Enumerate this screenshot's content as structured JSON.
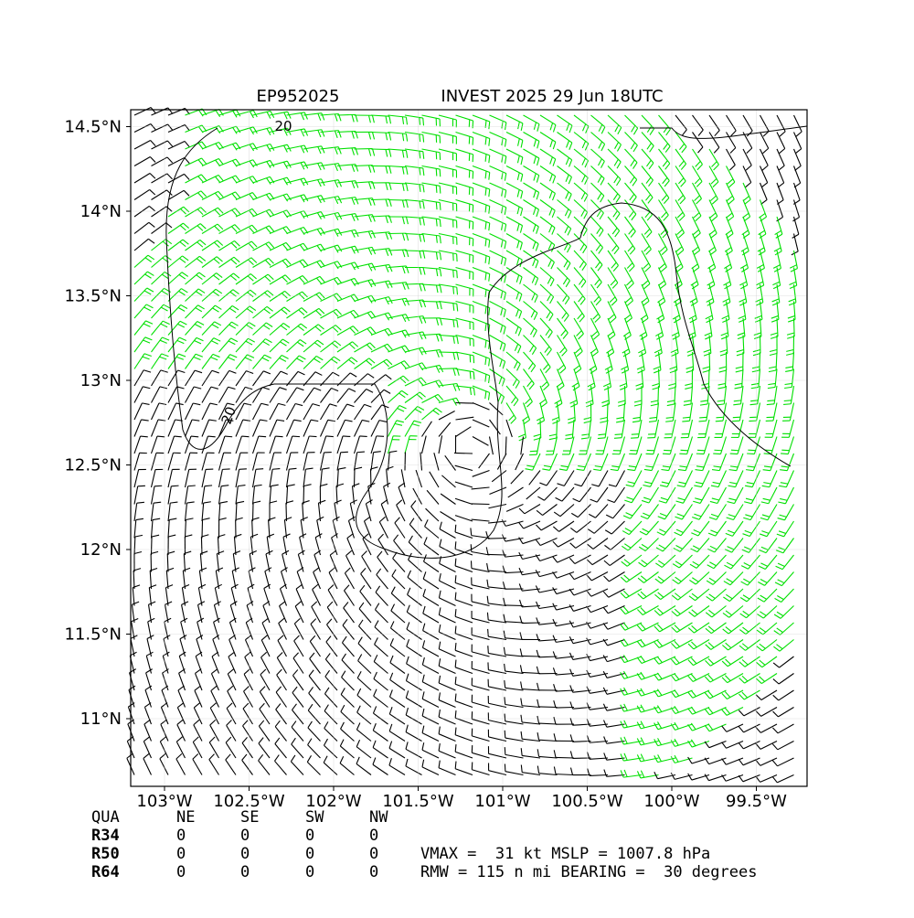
{
  "title_left": "EP952025",
  "title_right": "INVEST 2025 29 Jun 18UTC",
  "map": {
    "xlim": [
      -103.2,
      -99.2
    ],
    "ylim": [
      10.6,
      14.6
    ],
    "xticks": [
      {
        "value": -103,
        "label": "103°W"
      },
      {
        "value": -102.5,
        "label": "102.5°W"
      },
      {
        "value": -102,
        "label": "102°W"
      },
      {
        "value": -101.5,
        "label": "101.5°W"
      },
      {
        "value": -101,
        "label": "101°W"
      },
      {
        "value": -100.5,
        "label": "100.5°W"
      },
      {
        "value": -100,
        "label": "100°W"
      },
      {
        "value": -99.5,
        "label": "99.5°W"
      }
    ],
    "yticks": [
      {
        "value": 11,
        "label": "11°N"
      },
      {
        "value": 11.5,
        "label": "11.5°N"
      },
      {
        "value": 12,
        "label": "12°N"
      },
      {
        "value": 12.5,
        "label": "12.5°N"
      },
      {
        "value": 13,
        "label": "13°N"
      },
      {
        "value": 13.5,
        "label": "13.5°N"
      },
      {
        "value": 14,
        "label": "14°N"
      },
      {
        "value": 14.5,
        "label": "14.5°N"
      }
    ],
    "contour_labels": [
      "20",
      "20"
    ]
  },
  "table": {
    "header": [
      "QUA",
      "NE",
      "SE",
      "SW",
      "NW"
    ],
    "rows": [
      [
        "R34",
        "0",
        "0",
        "0",
        "0"
      ],
      [
        "R50",
        "0",
        "0",
        "0",
        "0"
      ],
      [
        "R64",
        "0",
        "0",
        "0",
        "0"
      ]
    ]
  },
  "info": [
    "VMAX =  31 kt MSLP = 1007.8 hPa",
    "RMW = 115 n mi BEARING =  30 degrees"
  ]
}
